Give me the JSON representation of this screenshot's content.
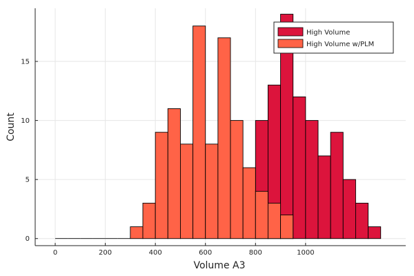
{
  "chart_data": {
    "type": "bar",
    "title": "",
    "xlabel": "Volume A3",
    "ylabel": "Count",
    "xlim": [
      -80,
      1400
    ],
    "ylim": [
      -0.6,
      19.5
    ],
    "bin_width": 50,
    "x_ticks": [
      0,
      200,
      400,
      600,
      800,
      1000
    ],
    "y_ticks": [
      0,
      5,
      10,
      15
    ],
    "grid": true,
    "legend_position": "top-right",
    "series": [
      {
        "name": "High Volume",
        "color": "#dc143c",
        "bins": [
          {
            "x0": 800,
            "count": 10
          },
          {
            "x0": 850,
            "count": 13
          },
          {
            "x0": 900,
            "count": 19
          },
          {
            "x0": 950,
            "count": 12
          },
          {
            "x0": 1000,
            "count": 10
          },
          {
            "x0": 1050,
            "count": 7
          },
          {
            "x0": 1100,
            "count": 9
          },
          {
            "x0": 1150,
            "count": 5
          },
          {
            "x0": 1200,
            "count": 3
          },
          {
            "x0": 1250,
            "count": 1
          }
        ]
      },
      {
        "name": "High Volume w/PLM",
        "color": "#ff6347",
        "bins": [
          {
            "x0": 0,
            "count": 0
          },
          {
            "x0": 50,
            "count": 0
          },
          {
            "x0": 100,
            "count": 0
          },
          {
            "x0": 150,
            "count": 0
          },
          {
            "x0": 200,
            "count": 0
          },
          {
            "x0": 250,
            "count": 0
          },
          {
            "x0": 300,
            "count": 1
          },
          {
            "x0": 350,
            "count": 3
          },
          {
            "x0": 400,
            "count": 9
          },
          {
            "x0": 450,
            "count": 11
          },
          {
            "x0": 500,
            "count": 8
          },
          {
            "x0": 550,
            "count": 18
          },
          {
            "x0": 600,
            "count": 8
          },
          {
            "x0": 650,
            "count": 17
          },
          {
            "x0": 700,
            "count": 10
          },
          {
            "x0": 750,
            "count": 6
          },
          {
            "x0": 800,
            "count": 4
          },
          {
            "x0": 850,
            "count": 3
          },
          {
            "x0": 900,
            "count": 2
          }
        ]
      }
    ]
  }
}
